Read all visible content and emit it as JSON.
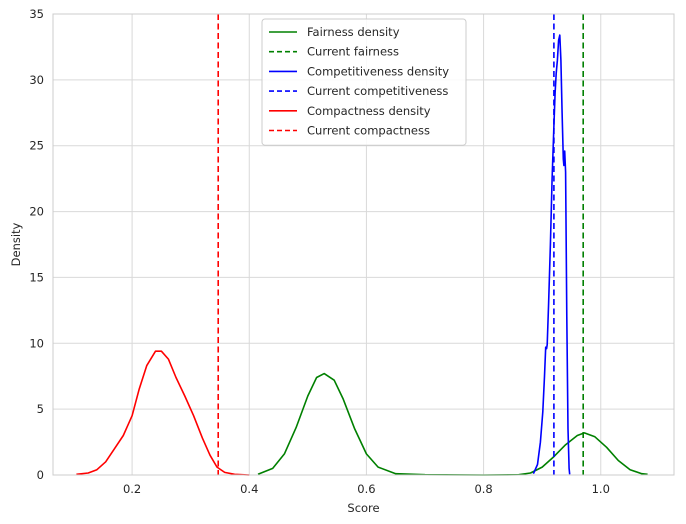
{
  "chart_data": {
    "type": "line",
    "title": "",
    "xlabel": "Score",
    "ylabel": "Density",
    "xlim": [
      0.065,
      1.125
    ],
    "ylim": [
      0,
      35
    ],
    "xticks": [
      "0.2",
      "0.4",
      "0.6",
      "0.8",
      "1.0"
    ],
    "xtick_values": [
      0.2,
      0.4,
      0.6,
      0.8,
      1.0
    ],
    "yticks": [
      "0",
      "5",
      "10",
      "15",
      "20",
      "25",
      "30",
      "35"
    ],
    "ytick_values": [
      0,
      5,
      10,
      15,
      20,
      25,
      30,
      35
    ],
    "grid": true,
    "legend_position": "top-center",
    "series": [
      {
        "name": "Fairness density",
        "style": "solid",
        "color": "#008000",
        "points": [
          [
            0.415,
            0.05
          ],
          [
            0.44,
            0.5
          ],
          [
            0.46,
            1.6
          ],
          [
            0.48,
            3.6
          ],
          [
            0.5,
            6.0
          ],
          [
            0.515,
            7.4
          ],
          [
            0.528,
            7.7
          ],
          [
            0.545,
            7.2
          ],
          [
            0.56,
            5.8
          ],
          [
            0.58,
            3.5
          ],
          [
            0.6,
            1.6
          ],
          [
            0.62,
            0.6
          ],
          [
            0.65,
            0.1
          ],
          [
            0.7,
            0.02
          ],
          [
            0.8,
            0.0
          ],
          [
            0.86,
            0.02
          ],
          [
            0.88,
            0.15
          ],
          [
            0.9,
            0.6
          ],
          [
            0.92,
            1.4
          ],
          [
            0.94,
            2.3
          ],
          [
            0.96,
            3.0
          ],
          [
            0.972,
            3.2
          ],
          [
            0.99,
            2.9
          ],
          [
            1.01,
            2.1
          ],
          [
            1.03,
            1.1
          ],
          [
            1.05,
            0.4
          ],
          [
            1.07,
            0.1
          ],
          [
            1.08,
            0.05
          ]
        ]
      },
      {
        "name": "Current fairness",
        "style": "dashed",
        "color": "#008000",
        "x": 0.97
      },
      {
        "name": "Competitiveness density",
        "style": "solid",
        "color": "#0000ff",
        "points": [
          [
            0.885,
            0.1
          ],
          [
            0.892,
            0.8
          ],
          [
            0.897,
            2.5
          ],
          [
            0.901,
            4.8
          ],
          [
            0.904,
            7.5
          ],
          [
            0.906,
            9.7
          ],
          [
            0.9075,
            9.6
          ],
          [
            0.9085,
            9.9
          ],
          [
            0.911,
            13.0
          ],
          [
            0.914,
            17.5
          ],
          [
            0.917,
            22.5
          ],
          [
            0.92,
            26.5
          ],
          [
            0.922,
            29.0
          ],
          [
            0.924,
            30.5
          ],
          [
            0.926,
            31.5
          ],
          [
            0.928,
            33.0
          ],
          [
            0.93,
            33.4
          ],
          [
            0.932,
            31.5
          ],
          [
            0.934,
            27.5
          ],
          [
            0.936,
            24.0
          ],
          [
            0.937,
            23.5
          ],
          [
            0.9385,
            24.6
          ],
          [
            0.94,
            23.0
          ],
          [
            0.942,
            12.0
          ],
          [
            0.944,
            3.5
          ],
          [
            0.946,
            0.5
          ],
          [
            0.947,
            0.05
          ]
        ]
      },
      {
        "name": "Current competitiveness",
        "style": "dashed",
        "color": "#0000ff",
        "x": 0.92
      },
      {
        "name": "Compactness density",
        "style": "solid",
        "color": "#ff0000",
        "points": [
          [
            0.105,
            0.05
          ],
          [
            0.125,
            0.15
          ],
          [
            0.14,
            0.4
          ],
          [
            0.155,
            1.0
          ],
          [
            0.17,
            2.0
          ],
          [
            0.185,
            3.0
          ],
          [
            0.2,
            4.5
          ],
          [
            0.212,
            6.5
          ],
          [
            0.225,
            8.3
          ],
          [
            0.24,
            9.4
          ],
          [
            0.25,
            9.4
          ],
          [
            0.262,
            8.8
          ],
          [
            0.275,
            7.4
          ],
          [
            0.29,
            6.0
          ],
          [
            0.305,
            4.5
          ],
          [
            0.32,
            2.8
          ],
          [
            0.333,
            1.5
          ],
          [
            0.345,
            0.6
          ],
          [
            0.358,
            0.2
          ],
          [
            0.375,
            0.05
          ],
          [
            0.4,
            0.0
          ]
        ]
      },
      {
        "name": "Current compactness",
        "style": "dashed",
        "color": "#ff0000",
        "x": 0.347
      }
    ]
  }
}
